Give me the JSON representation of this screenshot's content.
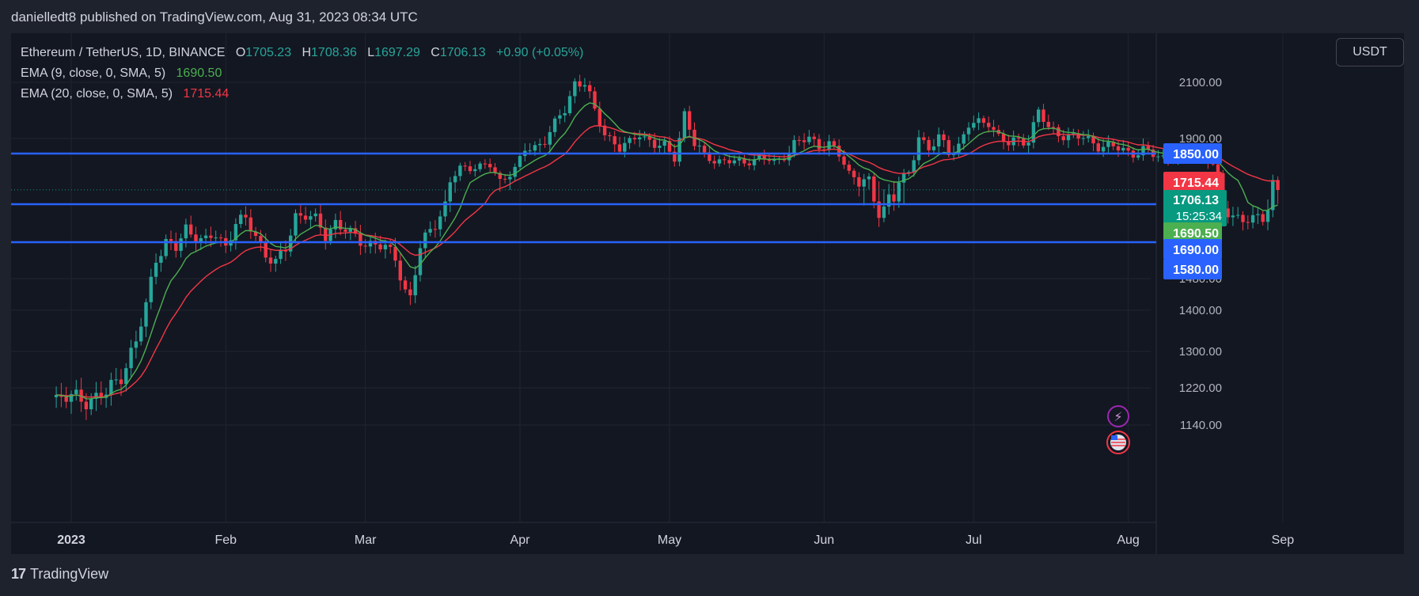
{
  "header": {
    "published": "danielledt8 published on TradingView.com, Aug 31, 2023 08:34 UTC"
  },
  "legend": {
    "symbol": "Ethereum / TetherUS, 1D, BINANCE",
    "o_label": "O",
    "o": "1705.23",
    "h_label": "H",
    "h": "1708.36",
    "l_label": "L",
    "l": "1697.29",
    "c_label": "C",
    "c": "1706.13",
    "change": "+0.90 (+0.05%)",
    "ema9_label": "EMA (9, close, 0, SMA, 5)",
    "ema9_value": "1690.50",
    "ema20_label": "EMA (20, close, 0, SMA, 5)",
    "ema20_value": "1715.44"
  },
  "currency_button": "USDT",
  "footer": {
    "brand": "TradingView",
    "logo": "17"
  },
  "icons": {
    "flash": "flash-icon",
    "flag": "us-flag-icon"
  },
  "colors": {
    "background": "#131722",
    "up": "#26a69a",
    "down": "#f23645",
    "ema9": "#4caf50",
    "ema20": "#f23645",
    "level_line": "#2962ff"
  },
  "chart_data": {
    "type": "candlestick",
    "ylabel": "",
    "y_ticks": [
      2100,
      1900,
      1480,
      1400,
      1300,
      1220,
      1140
    ],
    "y_tick_labels": [
      "2100.00",
      "1900.00",
      "1480.00",
      "1400.00",
      "1300.00",
      "1220.00",
      "1140.00"
    ],
    "x_ticks": [
      {
        "label": "2023",
        "day": 0
      },
      {
        "label": "Feb",
        "day": 31
      },
      {
        "label": "Mar",
        "day": 59
      },
      {
        "label": "Apr",
        "day": 90
      },
      {
        "label": "May",
        "day": 120
      },
      {
        "label": "Jun",
        "day": 151
      },
      {
        "label": "Jul",
        "day": 181
      },
      {
        "label": "Aug",
        "day": 212
      },
      {
        "label": "Sep",
        "day": 243
      }
    ],
    "horizontal_levels": [
      {
        "value": 1850,
        "label": "1850.00"
      },
      {
        "value": 1690,
        "label": "1690.00"
      },
      {
        "value": 1580,
        "label": "1580.00"
      }
    ],
    "price_tags": [
      {
        "label": "1715.44",
        "value": 1715.44,
        "color": "#f23645"
      },
      {
        "label": "1706.13",
        "value": 1706.13,
        "color": "#089981",
        "countdown": "15:25:34"
      },
      {
        "label": "1690.50",
        "value": 1690.5,
        "color": "#4caf50"
      }
    ],
    "series": [
      {
        "name": "ETH/USDT",
        "close_by_day": [
          [
            -3,
            1200
          ],
          [
            3,
            1195
          ],
          [
            7,
            1205
          ],
          [
            10,
            1250
          ],
          [
            13,
            1320
          ],
          [
            15,
            1410
          ],
          [
            17,
            1540
          ],
          [
            19,
            1580
          ],
          [
            21,
            1560
          ],
          [
            23,
            1620
          ],
          [
            25,
            1600
          ],
          [
            27,
            1580
          ],
          [
            29,
            1600
          ],
          [
            31,
            1570
          ],
          [
            33,
            1640
          ],
          [
            35,
            1640
          ],
          [
            37,
            1600
          ],
          [
            39,
            1550
          ],
          [
            41,
            1520
          ],
          [
            43,
            1560
          ],
          [
            45,
            1660
          ],
          [
            47,
            1660
          ],
          [
            49,
            1640
          ],
          [
            51,
            1600
          ],
          [
            53,
            1640
          ],
          [
            56,
            1600
          ],
          [
            59,
            1580
          ],
          [
            61,
            1575
          ],
          [
            63,
            1560
          ],
          [
            65,
            1540
          ],
          [
            67,
            1450
          ],
          [
            68,
            1430
          ],
          [
            70,
            1560
          ],
          [
            72,
            1620
          ],
          [
            75,
            1680
          ],
          [
            78,
            1780
          ],
          [
            81,
            1790
          ],
          [
            84,
            1790
          ],
          [
            86,
            1720
          ],
          [
            89,
            1780
          ],
          [
            91,
            1860
          ],
          [
            93,
            1870
          ],
          [
            95,
            1900
          ],
          [
            97,
            1950
          ],
          [
            99,
            2000
          ],
          [
            101,
            2100
          ],
          [
            103,
            2100
          ],
          [
            104,
            2050
          ],
          [
            105,
            1990
          ],
          [
            107,
            1920
          ],
          [
            110,
            1870
          ],
          [
            112,
            1880
          ],
          [
            114,
            1920
          ],
          [
            117,
            1880
          ],
          [
            119,
            1870
          ],
          [
            121,
            1830
          ],
          [
            123,
            1990
          ],
          [
            125,
            1880
          ],
          [
            127,
            1840
          ],
          [
            129,
            1820
          ],
          [
            132,
            1810
          ],
          [
            135,
            1810
          ],
          [
            138,
            1830
          ],
          [
            141,
            1810
          ],
          [
            143,
            1840
          ],
          [
            145,
            1880
          ],
          [
            148,
            1900
          ],
          [
            150,
            1880
          ],
          [
            152,
            1880
          ],
          [
            154,
            1840
          ],
          [
            156,
            1760
          ],
          [
            158,
            1730
          ],
          [
            160,
            1720
          ],
          [
            162,
            1660
          ],
          [
            164,
            1700
          ],
          [
            166,
            1720
          ],
          [
            168,
            1750
          ],
          [
            170,
            1910
          ],
          [
            172,
            1870
          ],
          [
            174,
            1900
          ],
          [
            176,
            1850
          ],
          [
            178,
            1880
          ],
          [
            180,
            1950
          ],
          [
            182,
            1950
          ],
          [
            184,
            1960
          ],
          [
            186,
            1910
          ],
          [
            188,
            1880
          ],
          [
            190,
            1890
          ],
          [
            192,
            1900
          ],
          [
            194,
            2000
          ],
          [
            196,
            1930
          ],
          [
            198,
            1920
          ],
          [
            200,
            1910
          ],
          [
            203,
            1900
          ],
          [
            206,
            1880
          ],
          [
            209,
            1870
          ],
          [
            211,
            1860
          ],
          [
            213,
            1850
          ],
          [
            215,
            1860
          ],
          [
            217,
            1840
          ],
          [
            220,
            1830
          ],
          [
            222,
            1840
          ],
          [
            225,
            1840
          ],
          [
            227,
            1840
          ],
          [
            229,
            1800
          ],
          [
            231,
            1670
          ],
          [
            233,
            1660
          ],
          [
            235,
            1650
          ],
          [
            237,
            1640
          ],
          [
            239,
            1650
          ],
          [
            241,
            1720
          ],
          [
            242,
            1706
          ]
        ]
      },
      {
        "name": "EMA (9, close, 0, SMA, 5)",
        "last": 1690.5
      },
      {
        "name": "EMA (20, close, 0, SMA, 5)",
        "last": 1715.44
      }
    ]
  }
}
